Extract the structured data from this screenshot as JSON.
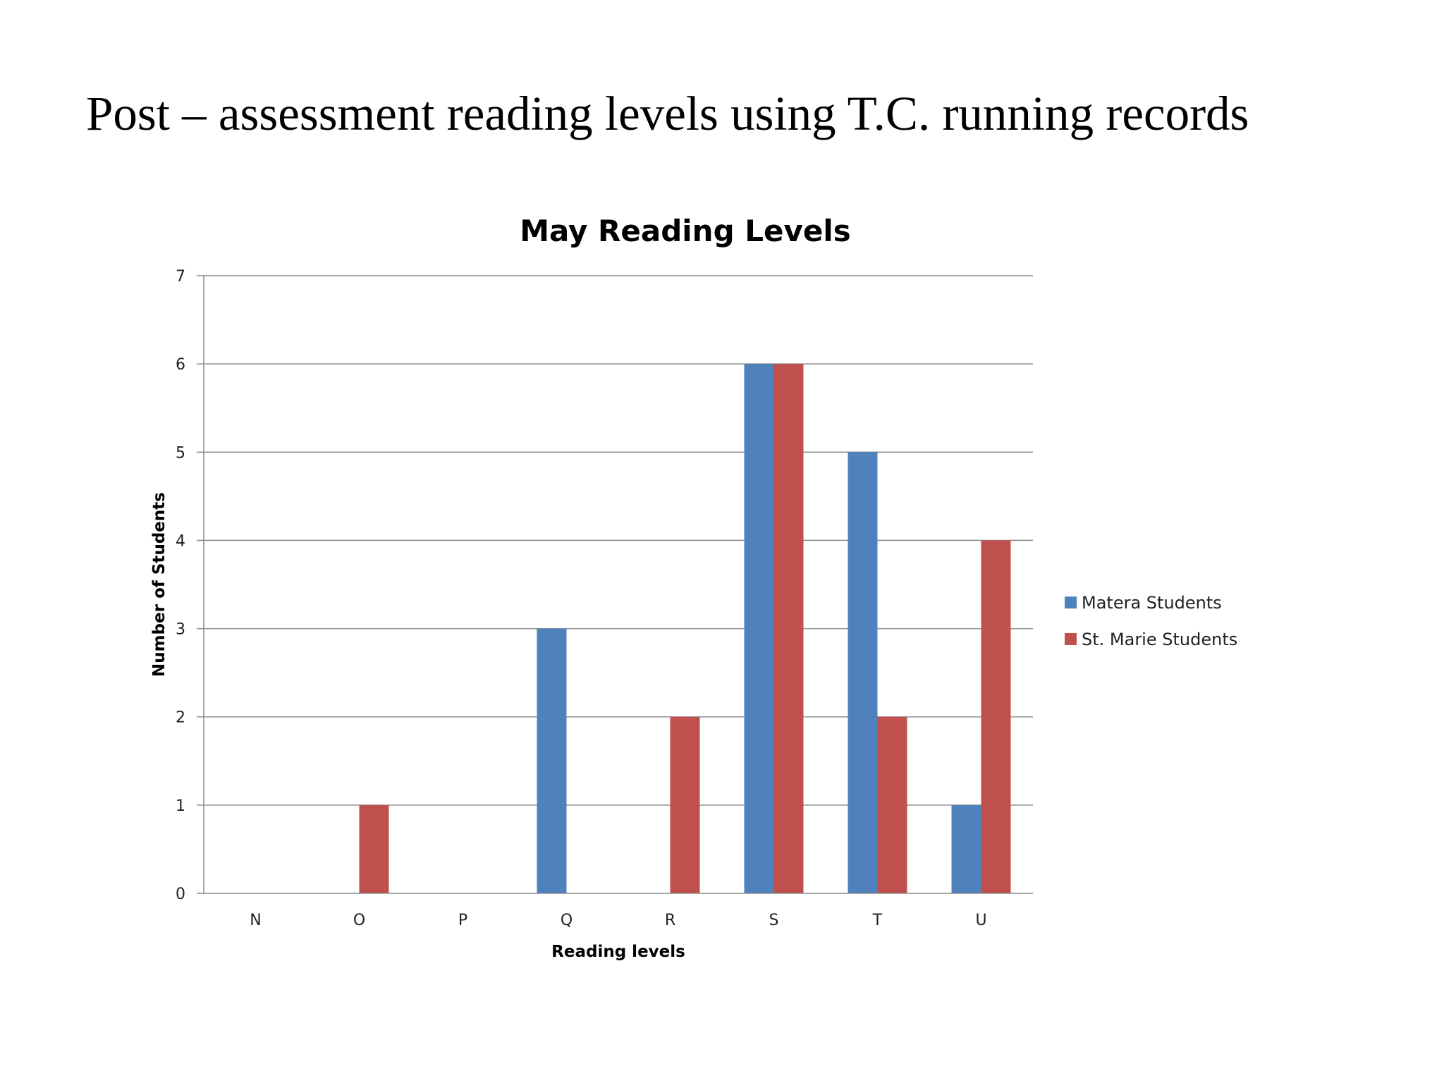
{
  "slide": {
    "title": "Post – assessment reading levels using T.C. running records"
  },
  "chart_data": {
    "type": "bar",
    "title": "May Reading Levels",
    "xlabel": "Reading levels",
    "ylabel": "Number of Students",
    "categories": [
      "N",
      "O",
      "P",
      "Q",
      "R",
      "S",
      "T",
      "U"
    ],
    "series": [
      {
        "name": "Matera Students",
        "color": "#4F81BD",
        "values": [
          0,
          0,
          0,
          3,
          0,
          6,
          5,
          1
        ]
      },
      {
        "name": "St. Marie Students",
        "color": "#C0504D",
        "values": [
          0,
          1,
          0,
          0,
          2,
          6,
          2,
          4
        ]
      }
    ],
    "ylim": [
      0,
      7
    ],
    "yticks": [
      0,
      1,
      2,
      3,
      4,
      5,
      6,
      7
    ],
    "grid": true,
    "legend_position": "right"
  }
}
